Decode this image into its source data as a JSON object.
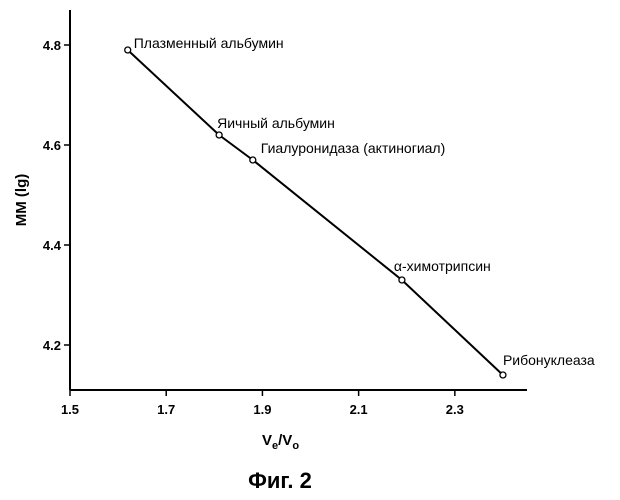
{
  "chart_data": {
    "type": "line",
    "title": "",
    "xlabel": {
      "main": "V",
      "sub1": "e",
      "sep": "/V",
      "sub2": "o"
    },
    "ylabel": "MM (lg)",
    "xlim": [
      1.5,
      2.45
    ],
    "ylim": [
      4.11,
      4.87
    ],
    "x_ticks": [
      1.5,
      1.7,
      1.9,
      2.1,
      2.3
    ],
    "x_tick_labels": [
      "1.5",
      "1.7",
      "1.9",
      "2.1",
      "2.3"
    ],
    "y_ticks": [
      4.2,
      4.4,
      4.6,
      4.8
    ],
    "y_tick_labels": [
      "4.2",
      "4.4",
      "4.6",
      "4.8"
    ],
    "grid": false,
    "series": [
      {
        "points": [
          {
            "x": 1.62,
            "y": 4.79,
            "label": "Плазменный альбумин"
          },
          {
            "x": 1.81,
            "y": 4.62,
            "label": "Яичный альбумин"
          },
          {
            "x": 1.88,
            "y": 4.57,
            "label": "Гиалуронидаза (актиногиал)"
          },
          {
            "x": 2.19,
            "y": 4.33,
            "label": "α-химотрипсин"
          },
          {
            "x": 2.4,
            "y": 4.14,
            "label": "Рибонуклеаза"
          }
        ]
      }
    ]
  },
  "caption": "Фиг. 2"
}
